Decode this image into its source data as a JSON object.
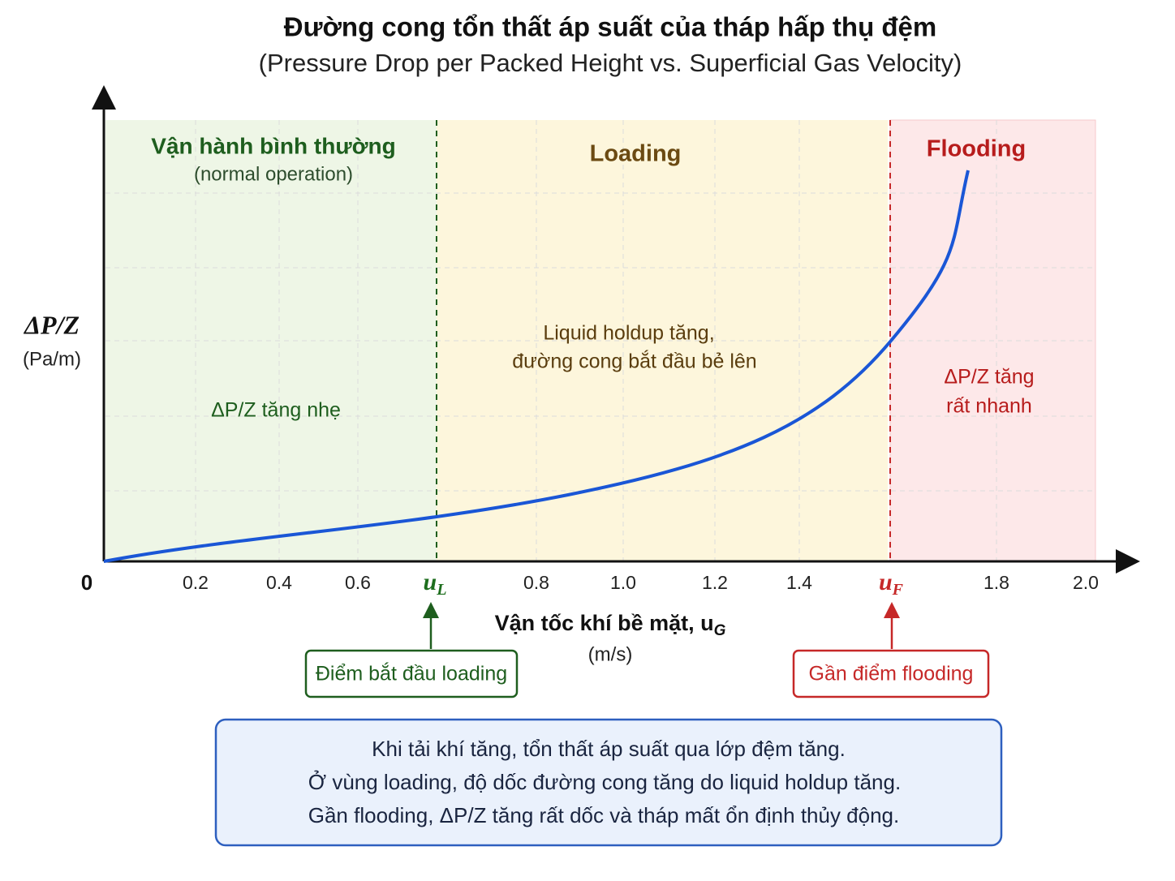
{
  "header": {
    "title": "Đường cong tổn thất áp suất của tháp hấp thụ đệm",
    "subtitle": "(Pressure Drop per Packed Height vs. Superficial Gas Velocity)"
  },
  "y_axis": {
    "label": "ΔP/Z",
    "unit": "(Pa/m)"
  },
  "x_axis": {
    "label": {
      "text": "Vận tốc khí bề mặt, u",
      "subscript": "G"
    },
    "unit": "(m/s)",
    "origin": "0",
    "ticks": [
      "0.2",
      "0.4",
      "0.6",
      {
        "symbol": "u",
        "subscript": "L"
      },
      "0.8",
      "1.0",
      "1.2",
      "1.4",
      {
        "symbol": "u",
        "subscript": "F"
      },
      "1.8",
      "2.0"
    ]
  },
  "zones": [
    {
      "title": "Vận hành bình thường",
      "subtitle": "(normal operation)",
      "note": [
        "ΔP/Z tăng nhẹ"
      ]
    },
    {
      "title": "Loading",
      "note": [
        "Liquid holdup tăng,",
        "đường cong bắt đầu bẻ lên"
      ]
    },
    {
      "title": "Flooding",
      "note": [
        "ΔP/Z tăng",
        "rất nhanh"
      ]
    }
  ],
  "callouts": [
    "Điểm bắt đầu loading",
    "Gần điểm flooding"
  ],
  "summary": [
    "Khi tải khí tăng, tổn thất áp suất qua lớp đệm tăng.",
    "Ở vùng loading, độ dốc đường cong tăng do liquid holdup tăng.",
    "Gần flooding, ΔP/Z tăng rất dốc và tháp mất ổn định thủy động."
  ]
}
